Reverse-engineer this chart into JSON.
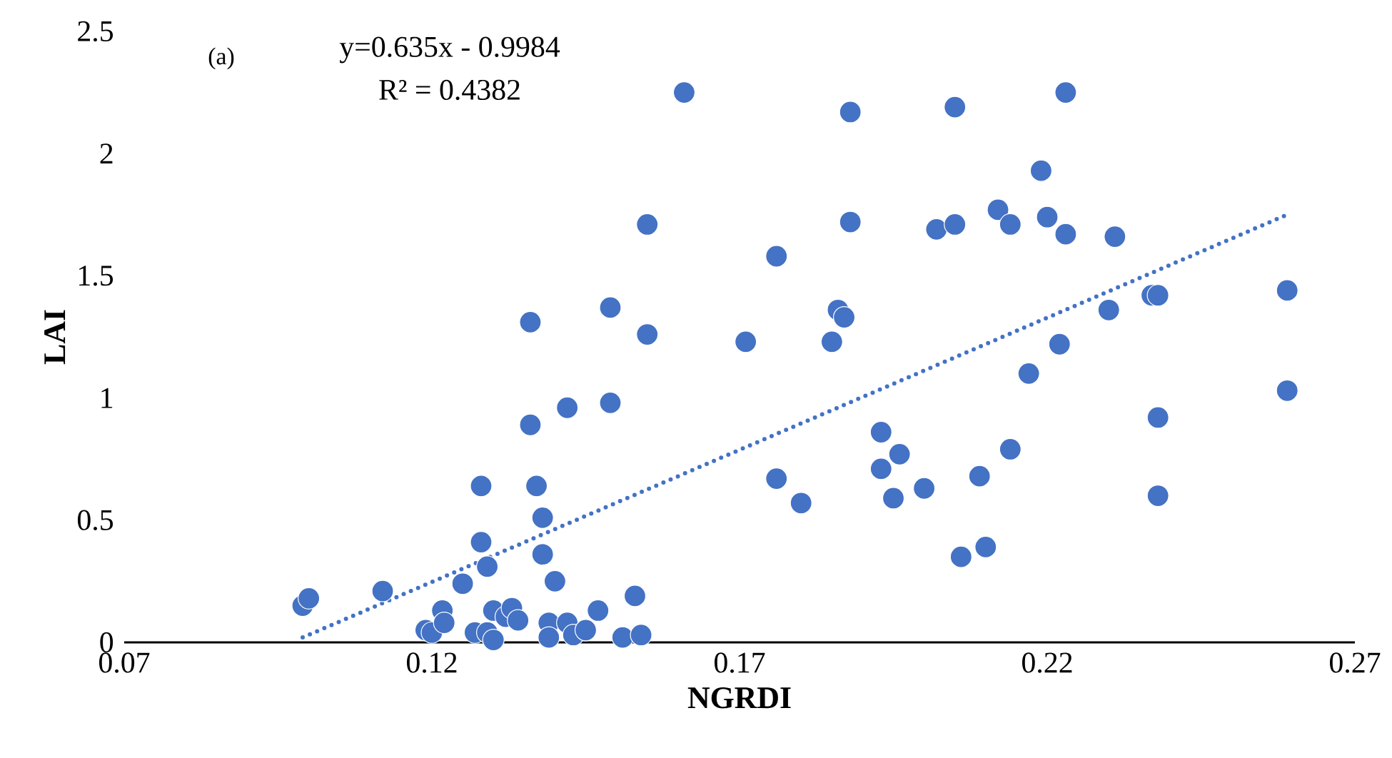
{
  "chart_data": {
    "type": "scatter",
    "xlabel": "NGRDI",
    "ylabel": "LAI",
    "annotations": [
      "(a)",
      "y=0.635x - 0.9984",
      "R² = 0.4382"
    ],
    "x": [
      0.099,
      0.1,
      0.112,
      0.119,
      0.12,
      0.1217,
      0.122,
      0.125,
      0.127,
      0.128,
      0.128,
      0.129,
      0.129,
      0.13,
      0.13,
      0.132,
      0.133,
      0.134,
      0.136,
      0.136,
      0.137,
      0.138,
      0.138,
      0.139,
      0.139,
      0.14,
      0.142,
      0.142,
      0.143,
      0.145,
      0.147,
      0.149,
      0.149,
      0.151,
      0.153,
      0.154,
      0.155,
      0.155,
      0.161,
      0.171,
      0.176,
      0.176,
      0.18,
      0.185,
      0.186,
      0.187,
      0.188,
      0.188,
      0.193,
      0.193,
      0.195,
      0.196,
      0.2,
      0.202,
      0.205,
      0.205,
      0.206,
      0.209,
      0.21,
      0.212,
      0.214,
      0.214,
      0.217,
      0.219,
      0.22,
      0.223,
      0.222,
      0.223,
      0.23,
      0.231,
      0.237,
      0.238,
      0.238,
      0.238,
      0.259,
      0.259
    ],
    "xlim": [
      0.07,
      0.27
    ],
    "ylim": [
      0,
      2.5
    ],
    "xticks": [
      0.07,
      0.12,
      0.17,
      0.22,
      0.27
    ],
    "yticks": [
      0,
      0.5,
      1,
      1.5,
      2,
      2.5
    ],
    "series": [
      {
        "marker": "circle",
        "color": "#4472c4",
        "values": [
          0.15,
          0.18,
          0.21,
          0.05,
          0.04,
          0.13,
          0.08,
          0.24,
          0.04,
          0.64,
          0.41,
          0.31,
          0.04,
          0.13,
          0.01,
          0.105,
          0.14,
          0.09,
          1.31,
          0.89,
          0.64,
          0.51,
          0.36,
          0.08,
          0.02,
          0.25,
          0.96,
          0.08,
          0.03,
          0.05,
          0.13,
          1.37,
          0.98,
          0.02,
          0.19,
          0.03,
          1.71,
          1.26,
          2.25,
          1.23,
          1.58,
          0.67,
          0.57,
          1.23,
          1.36,
          1.33,
          2.17,
          1.72,
          0.86,
          0.71,
          0.59,
          0.77,
          0.63,
          1.69,
          2.19,
          1.71,
          0.35,
          0.68,
          0.39,
          1.77,
          1.71,
          0.79,
          1.1,
          1.93,
          1.74,
          2.25,
          1.22,
          1.67,
          1.36,
          1.66,
          1.42,
          1.42,
          0.92,
          0.6,
          1.44,
          1.03
        ]
      },
      {
        "type": "line",
        "marker": "none",
        "color": "#4472c4",
        "line_style": "dotted",
        "x": [
          0.099,
          0.259
        ],
        "values": [
          0.02,
          1.75
        ]
      }
    ]
  }
}
